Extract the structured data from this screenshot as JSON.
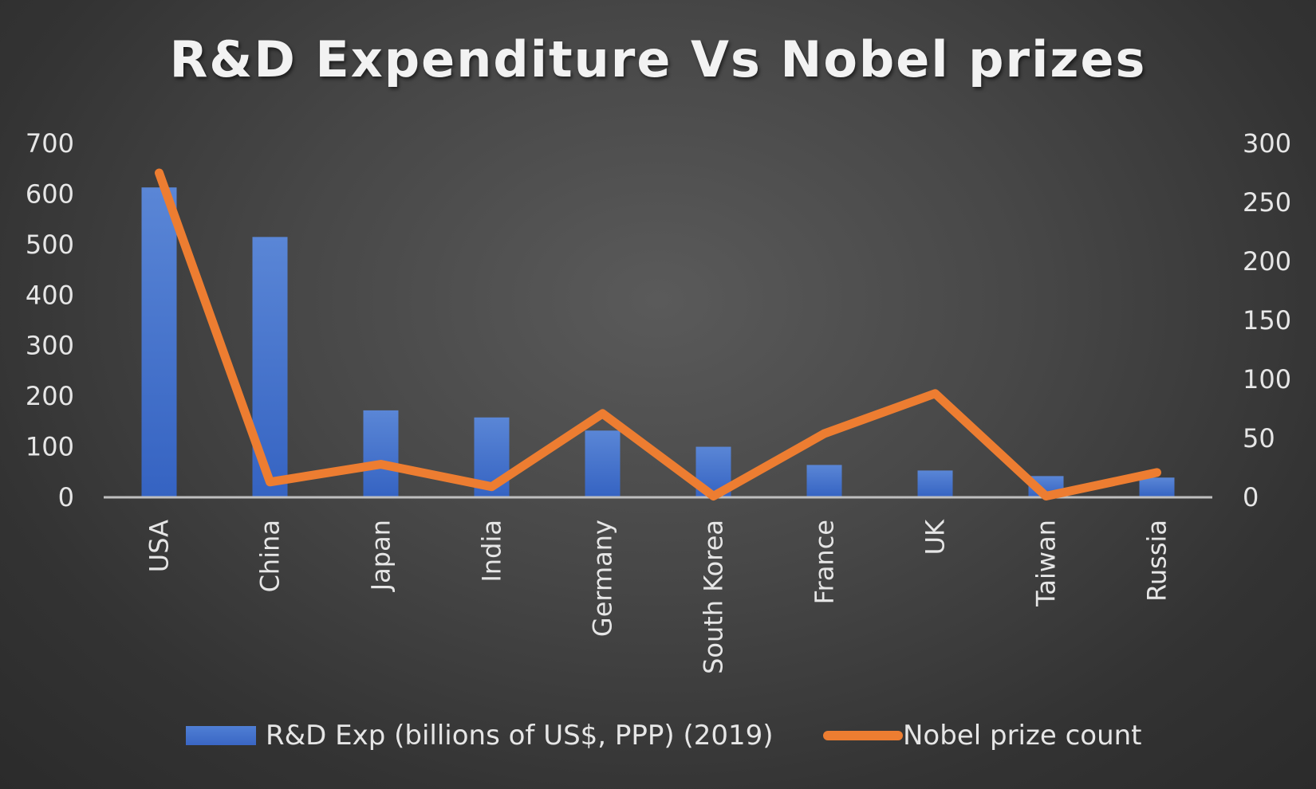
{
  "chart_data": {
    "type": "bar",
    "title": "R&D Expenditure Vs Nobel prizes",
    "categories": [
      "USA",
      "China",
      "Japan",
      "India",
      "Germany",
      "South Korea",
      "France",
      "UK",
      "Taiwan",
      "Russia"
    ],
    "series": [
      {
        "name": "R&D Exp (billions of US$, PPP) (2019)",
        "type": "bar",
        "axis": "left",
        "color": "#4472c4",
        "values": [
          613,
          515,
          172,
          158,
          132,
          100,
          64,
          53,
          42,
          39
        ]
      },
      {
        "name": "Nobel prize count",
        "type": "line",
        "axis": "right",
        "color": "#ed7d31",
        "values": [
          275,
          13,
          28,
          9,
          71,
          1,
          54,
          88,
          1,
          21
        ]
      }
    ],
    "y_left": {
      "ylim": [
        0,
        700
      ],
      "ticks": [
        "0",
        "100",
        "200",
        "300",
        "400",
        "500",
        "600",
        "700"
      ]
    },
    "y_right": {
      "ylim": [
        0,
        300
      ],
      "ticks": [
        "0",
        "50",
        "100",
        "150",
        "200",
        "250",
        "300"
      ]
    },
    "grid": false,
    "legend_position": "bottom",
    "category_label_rotation": "vertical"
  }
}
